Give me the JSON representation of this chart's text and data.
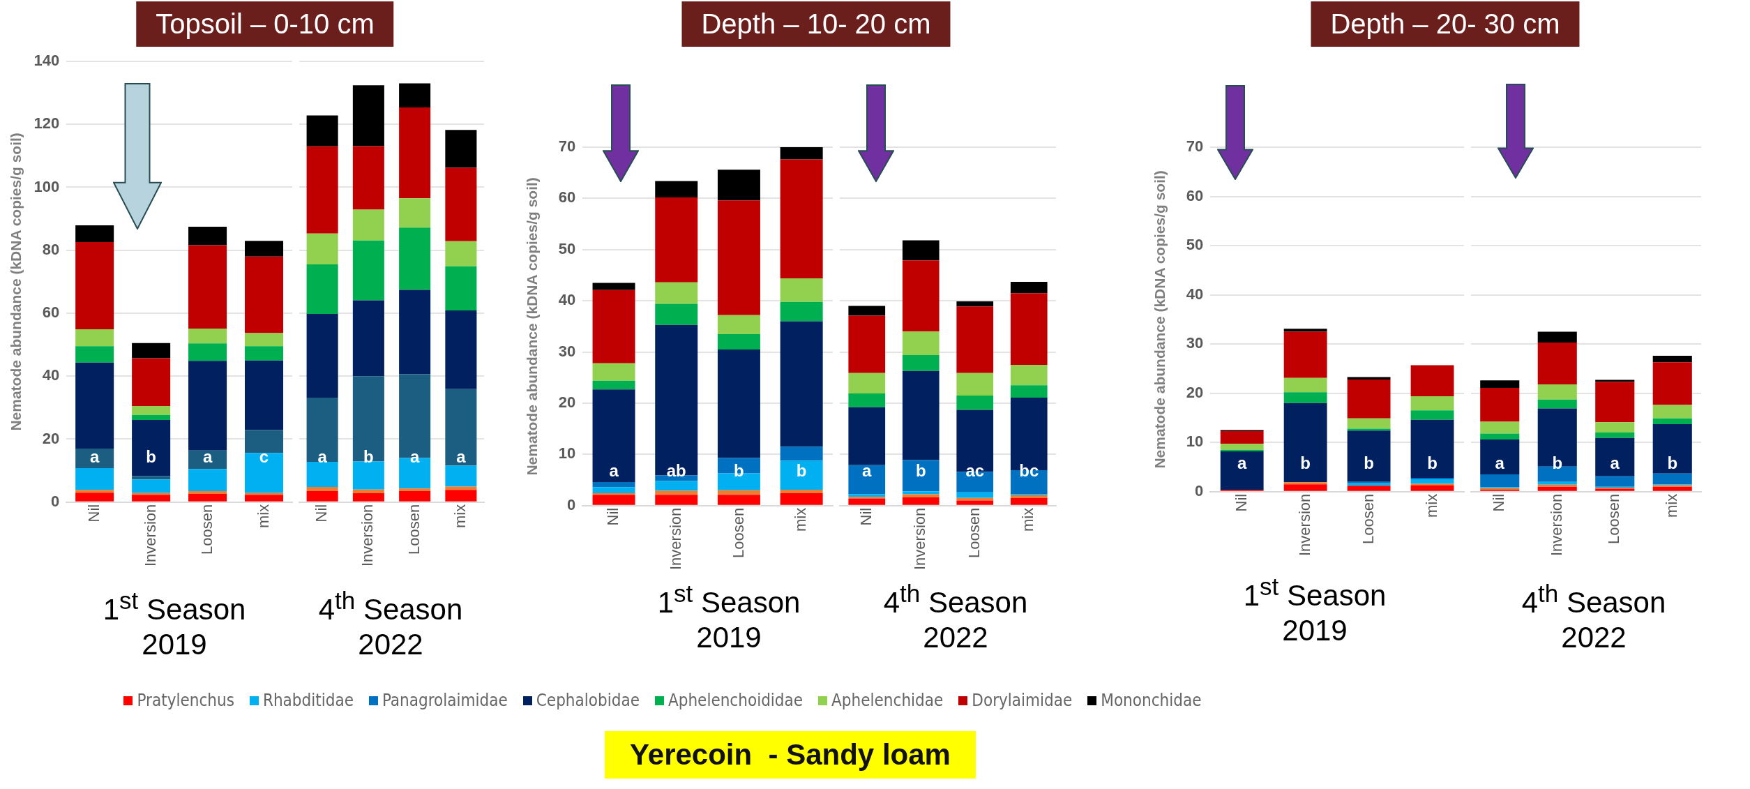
{
  "chart_data": [
    {
      "type": "bar",
      "stacked": true,
      "title": "Topsoil – 0-10 cm",
      "ylabel": "Nematode abundance (kDNA copies/g soil)",
      "xlabel": "1$^{st}$ Season 2019",
      "categories": [
        "Nil",
        "Inversion",
        "Loosen",
        "mix"
      ],
      "ylim": [
        0,
        140
      ],
      "yticks": [
        0,
        20,
        40,
        60,
        80,
        100,
        120,
        140
      ],
      "grid": "y",
      "legend": false,
      "series": [
        {
          "color": "#ff0000",
          "values": [
            3.0,
            2.3,
            2.6,
            2.3
          ]
        },
        {
          "color": "#ed7d31",
          "values": [
            0.9,
            0.6,
            0.9,
            0.6
          ]
        },
        {
          "color": "#00b0f0",
          "values": [
            6.9,
            4.3,
            7.0,
            12.7
          ]
        },
        {
          "color": "#1b5e82",
          "values": [
            6.2,
            1.1,
            5.9,
            7.3
          ]
        },
        {
          "color": "#002060",
          "values": [
            27.3,
            17.8,
            28.5,
            22.1
          ]
        },
        {
          "color": "#00b050",
          "values": [
            5.2,
            1.6,
            5.5,
            4.5
          ]
        },
        {
          "color": "#92d050",
          "values": [
            5.4,
            2.8,
            4.7,
            4.2
          ]
        },
        {
          "color": "#c00000",
          "values": [
            27.7,
            15.2,
            26.5,
            24.3
          ]
        },
        {
          "color": "#000000",
          "values": [
            5.3,
            4.8,
            5.9,
            5.0
          ]
        }
      ],
      "annotations": [
        "a",
        "b",
        "a",
        "c",
        "Yerecoin  - Sandy loam"
      ]
    },
    {
      "type": "bar",
      "stacked": true,
      "xlabel": "4$^{th}$ Season 2022",
      "categories": [
        "Nil",
        "Inversion",
        "Loosen",
        "mix"
      ],
      "ylim": [
        0,
        140
      ],
      "yticks": [
        0,
        20,
        40,
        60,
        80,
        100,
        120,
        140
      ],
      "grid": "y",
      "legend": false,
      "tick_labels": "x",
      "series": [
        {
          "color": "#ff0000",
          "values": [
            3.5,
            2.8,
            3.5,
            3.9
          ]
        },
        {
          "color": "#ed7d31",
          "values": [
            1.3,
            1.2,
            0.8,
            1.0
          ]
        },
        {
          "color": "#00b0f0",
          "values": [
            8.0,
            8.9,
            9.7,
            6.7
          ]
        },
        {
          "color": "#1b5e82",
          "values": [
            20.4,
            27.1,
            26.6,
            24.3
          ]
        },
        {
          "color": "#002060",
          "values": [
            26.6,
            24.1,
            26.8,
            25.0
          ]
        },
        {
          "color": "#00b050",
          "values": [
            15.7,
            19.0,
            19.8,
            14.0
          ]
        },
        {
          "color": "#92d050",
          "values": [
            9.8,
            9.8,
            9.3,
            8.0
          ]
        },
        {
          "color": "#c00000",
          "values": [
            27.7,
            20.2,
            28.9,
            23.3
          ]
        },
        {
          "color": "#000000",
          "values": [
            9.8,
            19.3,
            7.6,
            12.0
          ]
        }
      ],
      "annotations": [
        "a",
        "b",
        "a",
        "a"
      ]
    },
    {
      "type": "bar",
      "stacked": true,
      "title": "Depth – 10- 20 cm",
      "ylabel": "Nematode abundance (kDNA copies/g soil)",
      "xlabel": "1$^{st}$ Season 2019",
      "categories": [
        "Nil",
        "Inversion",
        "Loosen",
        "mix"
      ],
      "ylim": [
        0,
        70
      ],
      "yticks": [
        0,
        10,
        20,
        30,
        40,
        50,
        60,
        70
      ],
      "grid": "y",
      "legend": "bottom",
      "series": [
        {
          "name": "Pratylenchus",
          "color": "#ff0000",
          "values": [
            2.1,
            2.1,
            2.1,
            2.4
          ]
        },
        {
          "color": "#ed7d31",
          "values": [
            0.3,
            0.8,
            0.9,
            0.7
          ]
        },
        {
          "name": "Rhabditidae",
          "color": "#00b0f0",
          "values": [
            1.2,
            1.9,
            3.3,
            5.7
          ]
        },
        {
          "name": "Panagrolaimidae",
          "color": "#0070c0",
          "values": [
            1.0,
            1.1,
            3.0,
            2.7
          ]
        },
        {
          "name": "Cephalobidae",
          "color": "#002060",
          "values": [
            18.1,
            29.4,
            21.2,
            24.5
          ]
        },
        {
          "name": "Aphelenchoididae",
          "color": "#00b050",
          "values": [
            1.7,
            4.1,
            3.0,
            3.8
          ]
        },
        {
          "name": "Aphelenchidae",
          "color": "#92d050",
          "values": [
            3.4,
            4.2,
            3.7,
            4.6
          ]
        },
        {
          "name": "Dorylaimidae",
          "color": "#c00000",
          "values": [
            14.3,
            16.6,
            22.4,
            23.2
          ]
        },
        {
          "name": "Mononchidae",
          "color": "#000000",
          "values": [
            1.4,
            3.2,
            6.0,
            2.4
          ]
        }
      ],
      "annotations": [
        "a",
        "ab",
        "b",
        "b"
      ]
    },
    {
      "type": "bar",
      "stacked": true,
      "xlabel": "4$^{th}$ Season 2022",
      "categories": [
        "Nil",
        "Inversion",
        "Loosen",
        "mix"
      ],
      "ylim": [
        0,
        70
      ],
      "yticks": [
        0,
        10,
        20,
        30,
        40,
        50,
        60,
        70
      ],
      "grid": "y",
      "legend": false,
      "tick_labels": "x",
      "series": [
        {
          "color": "#ff0000",
          "values": [
            1.4,
            1.6,
            1.0,
            1.5
          ]
        },
        {
          "color": "#ed7d31",
          "values": [
            0.3,
            0.6,
            0.5,
            0.5
          ]
        },
        {
          "color": "#00b0f0",
          "values": [
            0.5,
            0.6,
            1.1,
            0.2
          ]
        },
        {
          "color": "#0070c0",
          "values": [
            5.7,
            6.1,
            4.0,
            4.7
          ]
        },
        {
          "color": "#002060",
          "values": [
            11.3,
            17.4,
            12.1,
            14.2
          ]
        },
        {
          "color": "#00b050",
          "values": [
            2.7,
            3.1,
            2.8,
            2.4
          ]
        },
        {
          "color": "#92d050",
          "values": [
            4.0,
            4.6,
            4.4,
            4.0
          ]
        },
        {
          "color": "#c00000",
          "values": [
            11.2,
            13.9,
            13.0,
            14.0
          ]
        },
        {
          "color": "#000000",
          "values": [
            1.9,
            3.9,
            1.0,
            2.2
          ]
        }
      ],
      "annotations": [
        "a",
        "b",
        "ac",
        "bc"
      ]
    },
    {
      "type": "bar",
      "stacked": true,
      "title": "Depth – 20- 30 cm",
      "ylabel": "Nematode abundance (kDNA copies/g soil)",
      "xlabel": "1$^{st}$ Season 2019",
      "categories": [
        "Nil",
        "Inversion",
        "Loosen",
        "mix"
      ],
      "ylim": [
        0,
        70
      ],
      "yticks": [
        0,
        10,
        20,
        30,
        40,
        50,
        60,
        70
      ],
      "grid": "y",
      "legend": false,
      "series": [
        {
          "color": "#ff0000",
          "values": [
            0.4,
            1.5,
            1.2,
            1.3
          ]
        },
        {
          "color": "#ed7d31",
          "values": [
            0,
            0.4,
            null,
            0.3
          ]
        },
        {
          "color": "#00b0f0",
          "values": [
            0,
            0,
            0.5,
            0.9
          ]
        },
        {
          "color": "#0070c0",
          "values": [
            0,
            0,
            0.3,
            0.3
          ]
        },
        {
          "color": "#002060",
          "values": [
            7.8,
            16.1,
            10.4,
            11.8
          ]
        },
        {
          "color": "#00b050",
          "values": [
            0.3,
            2.2,
            0.4,
            1.9
          ]
        },
        {
          "color": "#92d050",
          "values": [
            1.2,
            2.9,
            2.1,
            2.9
          ]
        },
        {
          "color": "#c00000",
          "values": [
            2.6,
            9.4,
            7.9,
            6.3
          ]
        },
        {
          "color": "#000000",
          "values": [
            0.2,
            0.6,
            0.5,
            null
          ]
        }
      ],
      "annotations": [
        "a",
        "b",
        "b",
        "b"
      ]
    },
    {
      "type": "bar",
      "stacked": true,
      "xlabel": "4$^{th}$ Season 2022",
      "categories": [
        "Nil",
        "Inversion",
        "Loosen",
        "mix"
      ],
      "ylim": [
        0,
        70
      ],
      "yticks": [
        0,
        10,
        20,
        30,
        40,
        50,
        60,
        70
      ],
      "grid": "y",
      "legend": false,
      "tick_labels": "x",
      "series": [
        {
          "color": "#ff0000",
          "values": [
            0.4,
            1.0,
            0.6,
            1.0
          ]
        },
        {
          "color": "#ed7d31",
          "values": [
            0.3,
            0.4,
            0.2,
            0.3
          ]
        },
        {
          "color": "#00b0f0",
          "values": [
            0.2,
            0.6,
            0.2,
            0.2
          ]
        },
        {
          "color": "#0070c0",
          "values": [
            2.6,
            3.1,
            2.1,
            2.2
          ]
        },
        {
          "color": "#002060",
          "values": [
            7.1,
            11.8,
            7.8,
            10.0
          ]
        },
        {
          "color": "#00b050",
          "values": [
            1.2,
            1.8,
            1.1,
            1.2
          ]
        },
        {
          "color": "#92d050",
          "values": [
            2.4,
            3.1,
            2.1,
            2.7
          ]
        },
        {
          "color": "#c00000",
          "values": [
            6.9,
            8.5,
            8.2,
            8.7
          ]
        },
        {
          "color": "#000000",
          "values": [
            1.5,
            2.2,
            0.4,
            1.3
          ]
        }
      ],
      "annotations": [
        "a",
        "b",
        "a",
        "b"
      ]
    }
  ]
}
